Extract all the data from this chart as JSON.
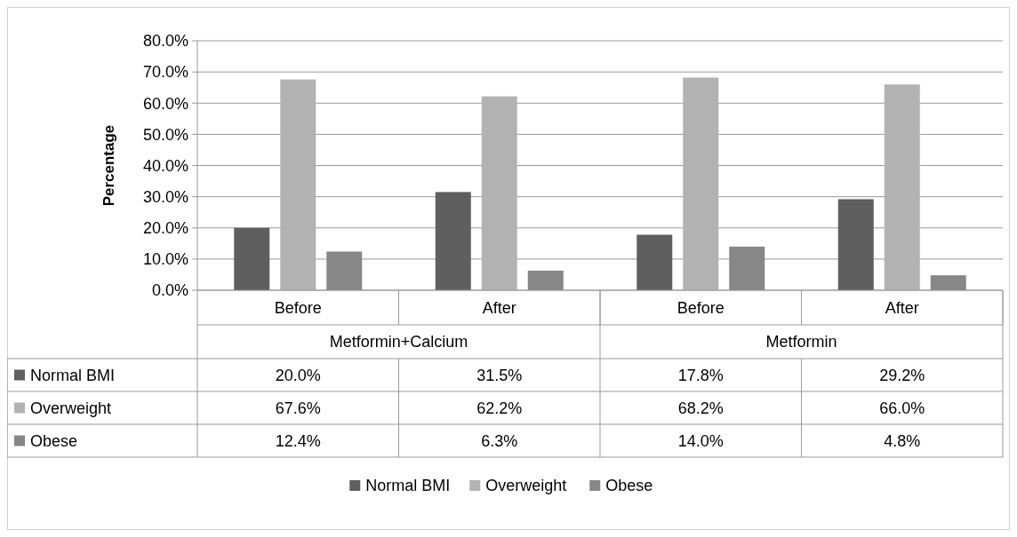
{
  "chart_data": {
    "type": "bar",
    "ylabel": "Percentage",
    "categories": [
      "Before",
      "After",
      "Before",
      "After"
    ],
    "annotations": [
      "Metformin+Calcium",
      "Metformin"
    ],
    "series": [
      {
        "name": "Normal BMI",
        "color": "#5f5f5f",
        "values": [
          20.0,
          31.5,
          17.8,
          29.2
        ],
        "value_labels": [
          "20.0%",
          "31.5%",
          "17.8%",
          "29.2%"
        ]
      },
      {
        "name": "Overweight",
        "color": "#b2b2b2",
        "values": [
          67.6,
          62.2,
          68.2,
          66.0
        ],
        "value_labels": [
          "67.6%",
          "62.2%",
          "68.2%",
          "66.0%"
        ]
      },
      {
        "name": "Obese",
        "color": "#878787",
        "values": [
          12.4,
          6.3,
          14.0,
          4.8
        ],
        "value_labels": [
          "12.4%",
          "6.3%",
          "14.0%",
          "4.8%"
        ]
      }
    ],
    "ylim": [
      0,
      80
    ],
    "yticks": [
      {
        "value": 0,
        "label": "0.0%"
      },
      {
        "value": 10,
        "label": "10.0%"
      },
      {
        "value": 20,
        "label": "20.0%"
      },
      {
        "value": 30,
        "label": "30.0%"
      },
      {
        "value": 40,
        "label": "40.0%"
      },
      {
        "value": 50,
        "label": "50.0%"
      },
      {
        "value": 60,
        "label": "60.0%"
      },
      {
        "value": 70,
        "label": "70.0%"
      },
      {
        "value": 80,
        "label": "80.0%"
      }
    ],
    "grid": "y",
    "legend": "bottom"
  }
}
